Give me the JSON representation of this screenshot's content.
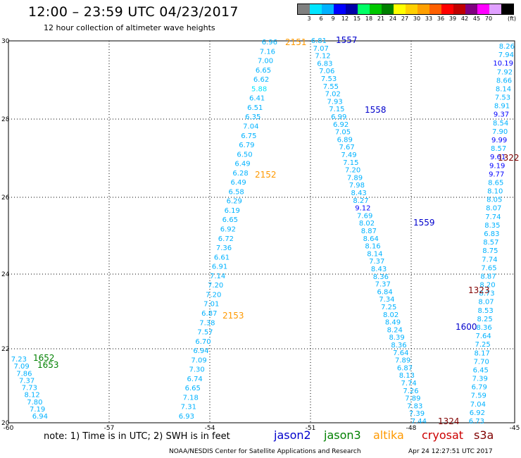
{
  "header": {
    "title": "12:00 – 23:59 UTC 04/23/2017",
    "subtitle": "12 hour collection of altimeter wave heights"
  },
  "colorbar": {
    "colors": [
      "#808080",
      "#00e5ff",
      "#00b2ff",
      "#0000ff",
      "#0000a8",
      "#00ff66",
      "#00c800",
      "#008000",
      "#ffff00",
      "#ffd000",
      "#ffa000",
      "#ff6000",
      "#ff0000",
      "#c00000",
      "#800080",
      "#ff00ff",
      "#e0a0ff",
      "#000000"
    ],
    "labels": [
      "3",
      "6",
      "9",
      "12",
      "15",
      "18",
      "21",
      "24",
      "27",
      "30",
      "33",
      "36",
      "39",
      "42",
      "45",
      "70"
    ],
    "unit": "(ft)"
  },
  "axes": {
    "y_ticks": [
      "30",
      "28",
      "26",
      "24",
      "22",
      "20"
    ],
    "x_ticks": [
      "-60",
      "-57",
      "-54",
      "-51",
      "-48",
      "-45"
    ]
  },
  "footer": {
    "note": "note: 1) Time is in UTC; 2) SWH is in feet",
    "satellites": [
      {
        "name": "jason2",
        "color": "#0000cc"
      },
      {
        "name": "jason3",
        "color": "#008000"
      },
      {
        "name": "altika",
        "color": "#ff9900"
      },
      {
        "name": "cryosat",
        "color": "#cc0000"
      },
      {
        "name": "s3a",
        "color": "#800000"
      }
    ],
    "credit": "NOAA/NESDIS Center for Satellite Applications and Research",
    "timestamp": "Apr 24 12:27:51 UTC 2017"
  },
  "time_labels": [
    {
      "text": "2151",
      "color": "#ff9900"
    },
    {
      "text": "1557",
      "color": "#0000cc"
    },
    {
      "text": "1558",
      "color": "#0000cc"
    },
    {
      "text": "1322",
      "color": "#800000"
    },
    {
      "text": "2152",
      "color": "#ff9900"
    },
    {
      "text": "1559",
      "color": "#0000cc"
    },
    {
      "text": "1323",
      "color": "#800000"
    },
    {
      "text": "2153",
      "color": "#ff9900"
    },
    {
      "text": "1600",
      "color": "#0000cc"
    },
    {
      "text": "1652",
      "color": "#008000"
    },
    {
      "text": "1653",
      "color": "#008000"
    },
    {
      "text": "1324",
      "color": "#800000"
    }
  ],
  "tracks": {
    "altika": [
      "6.96",
      "7.16",
      "7.00",
      "6.65",
      "6.62",
      "5.88",
      "6.41",
      "6.51",
      "6.35",
      "7.04",
      "6.75",
      "6.79",
      "6.50",
      "6.49",
      "6.28",
      "6.49",
      "6.58",
      "6.29",
      "6.19",
      "6.65",
      "6.92",
      "6.72",
      "7.36",
      "6.61",
      "6.91",
      "7.14",
      "7.20",
      "7.20",
      "7.01",
      "6.87",
      "7.38",
      "7.57",
      "6.70",
      "6.94",
      "7.09",
      "7.30",
      "6.74",
      "6.65",
      "7.18",
      "7.31",
      "6.93"
    ],
    "jason2": [
      "6.81",
      "7.07",
      "7.12",
      "6.83",
      "7.06",
      "7.53",
      "7.55",
      "7.02",
      "7.93",
      "7.15",
      "6.99",
      "6.92",
      "7.05",
      "6.89",
      "7.67",
      "7.49",
      "7.15",
      "7.20",
      "7.89",
      "7.98",
      "8.43",
      "8.27",
      "9.12",
      "7.69",
      "8.02",
      "8.87",
      "8.64",
      "8.16",
      "8.14",
      "7.37",
      "8.43",
      "8.36",
      "7.37",
      "6.84",
      "7.34",
      "7.25",
      "8.02",
      "8.49",
      "8.24",
      "8.39",
      "8.36",
      "7.64",
      "7.89",
      "6.87",
      "8.13",
      "7.74",
      "7.26",
      "7.89",
      "7.83",
      "7.39",
      "7.44"
    ],
    "jason3": [
      "7.23",
      "7.09",
      "7.86",
      "7.37",
      "7.73",
      "8.12",
      "7.80",
      "7.19",
      "6.94"
    ],
    "s3a": [
      "8.26",
      "7.94",
      "10.19",
      "7.92",
      "8.66",
      "8.14",
      "7.53",
      "8.91",
      "9.37",
      "8.54",
      "7.90",
      "9.99",
      "8.57",
      "9.61",
      "9.19",
      "9.77",
      "8.65",
      "8.10",
      "8.05",
      "8.07",
      "7.74",
      "8.35",
      "6.83",
      "8.57",
      "8.75",
      "7.74",
      "7.65",
      "8.87",
      "8.20",
      "8.73",
      "8.07",
      "8.53",
      "8.25",
      "8.36",
      "7.64",
      "7.25",
      "8.17",
      "7.70",
      "6.45",
      "7.39",
      "6.79",
      "7.59",
      "7.04",
      "6.92",
      "6.73"
    ]
  }
}
